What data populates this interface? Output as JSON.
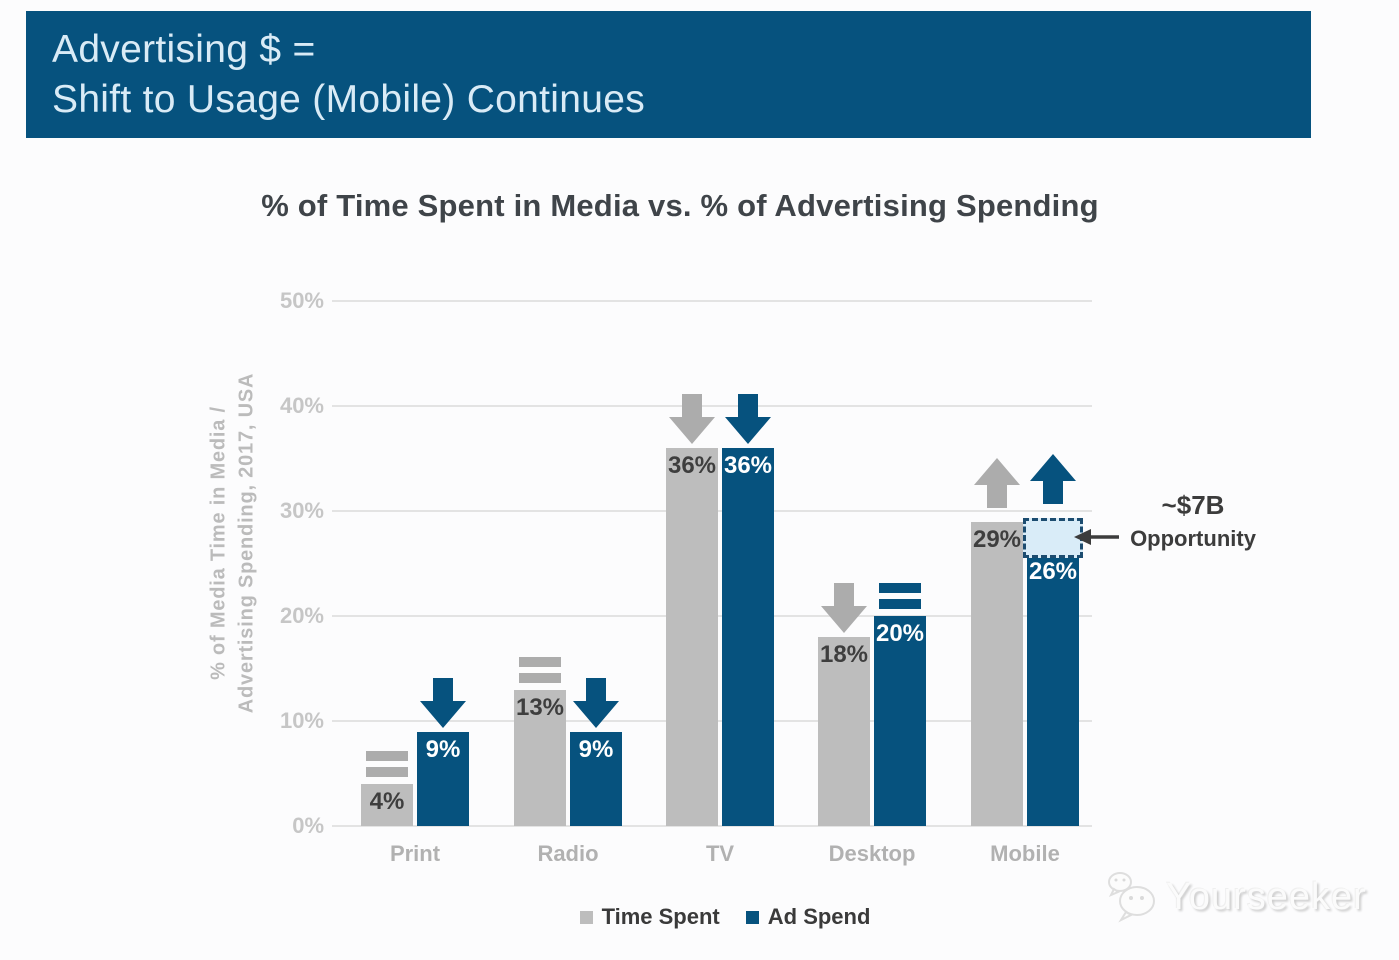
{
  "header": {
    "background": "#06527e",
    "title_line1": "Advertising $ =",
    "title_line2": "Shift to Usage (Mobile) Continues"
  },
  "chart_data": {
    "type": "bar",
    "title": "% of Time Spent in Media vs. % of Advertising Spending",
    "ylabel_line1": "% of Media Time in Media /",
    "ylabel_line2": "Advertising Spending, 2017, USA",
    "categories": [
      "Print",
      "Radio",
      "TV",
      "Desktop",
      "Mobile"
    ],
    "series": [
      {
        "name": "Time Spent",
        "color": "#bdbdbd",
        "label_color": "#3e3e3e",
        "trend_color": "#acacac",
        "values": [
          4,
          13,
          36,
          18,
          29
        ],
        "labels": [
          "4%",
          "13%",
          "36%",
          "18%",
          "29%"
        ],
        "trends": [
          "flat",
          "flat",
          "down",
          "down",
          "up"
        ]
      },
      {
        "name": "Ad Spend",
        "color": "#06527e",
        "label_color": "#ffffff",
        "trend_color": "#06527e",
        "values": [
          9,
          9,
          36,
          20,
          26
        ],
        "labels": [
          "9%",
          "9%",
          "36%",
          "20%",
          "26%"
        ],
        "trends": [
          "down",
          "down",
          "down",
          "flat",
          "up"
        ]
      }
    ],
    "ylim": [
      0,
      50
    ],
    "yticks": [
      "0%",
      "10%",
      "20%",
      "30%",
      "40%",
      "50%"
    ],
    "grid": true,
    "legend_position": "bottom",
    "opportunity": {
      "category": "Mobile",
      "series": "Ad Spend",
      "from_pct": 26,
      "to_pct": 29,
      "label_line1": "~$7B",
      "label_line2": "Opportunity",
      "box_fill": "#d9ecf8",
      "box_border": "#1c4c70"
    }
  },
  "legend": {
    "items": [
      {
        "label": "Time Spent",
        "color": "#bdbdbd"
      },
      {
        "label": "Ad Spend",
        "color": "#06527e"
      }
    ]
  },
  "watermark": {
    "text": "Yourseeker"
  },
  "colors": {
    "page_bg": "#fcfcfd",
    "grid_line": "#e3e3e3",
    "tick_label": "#c6c6c6",
    "axis_title": "#bbbbbb",
    "category_label": "#b1b1b1",
    "chart_title": "#3f4449",
    "annotation_text": "#3c3c3c"
  }
}
